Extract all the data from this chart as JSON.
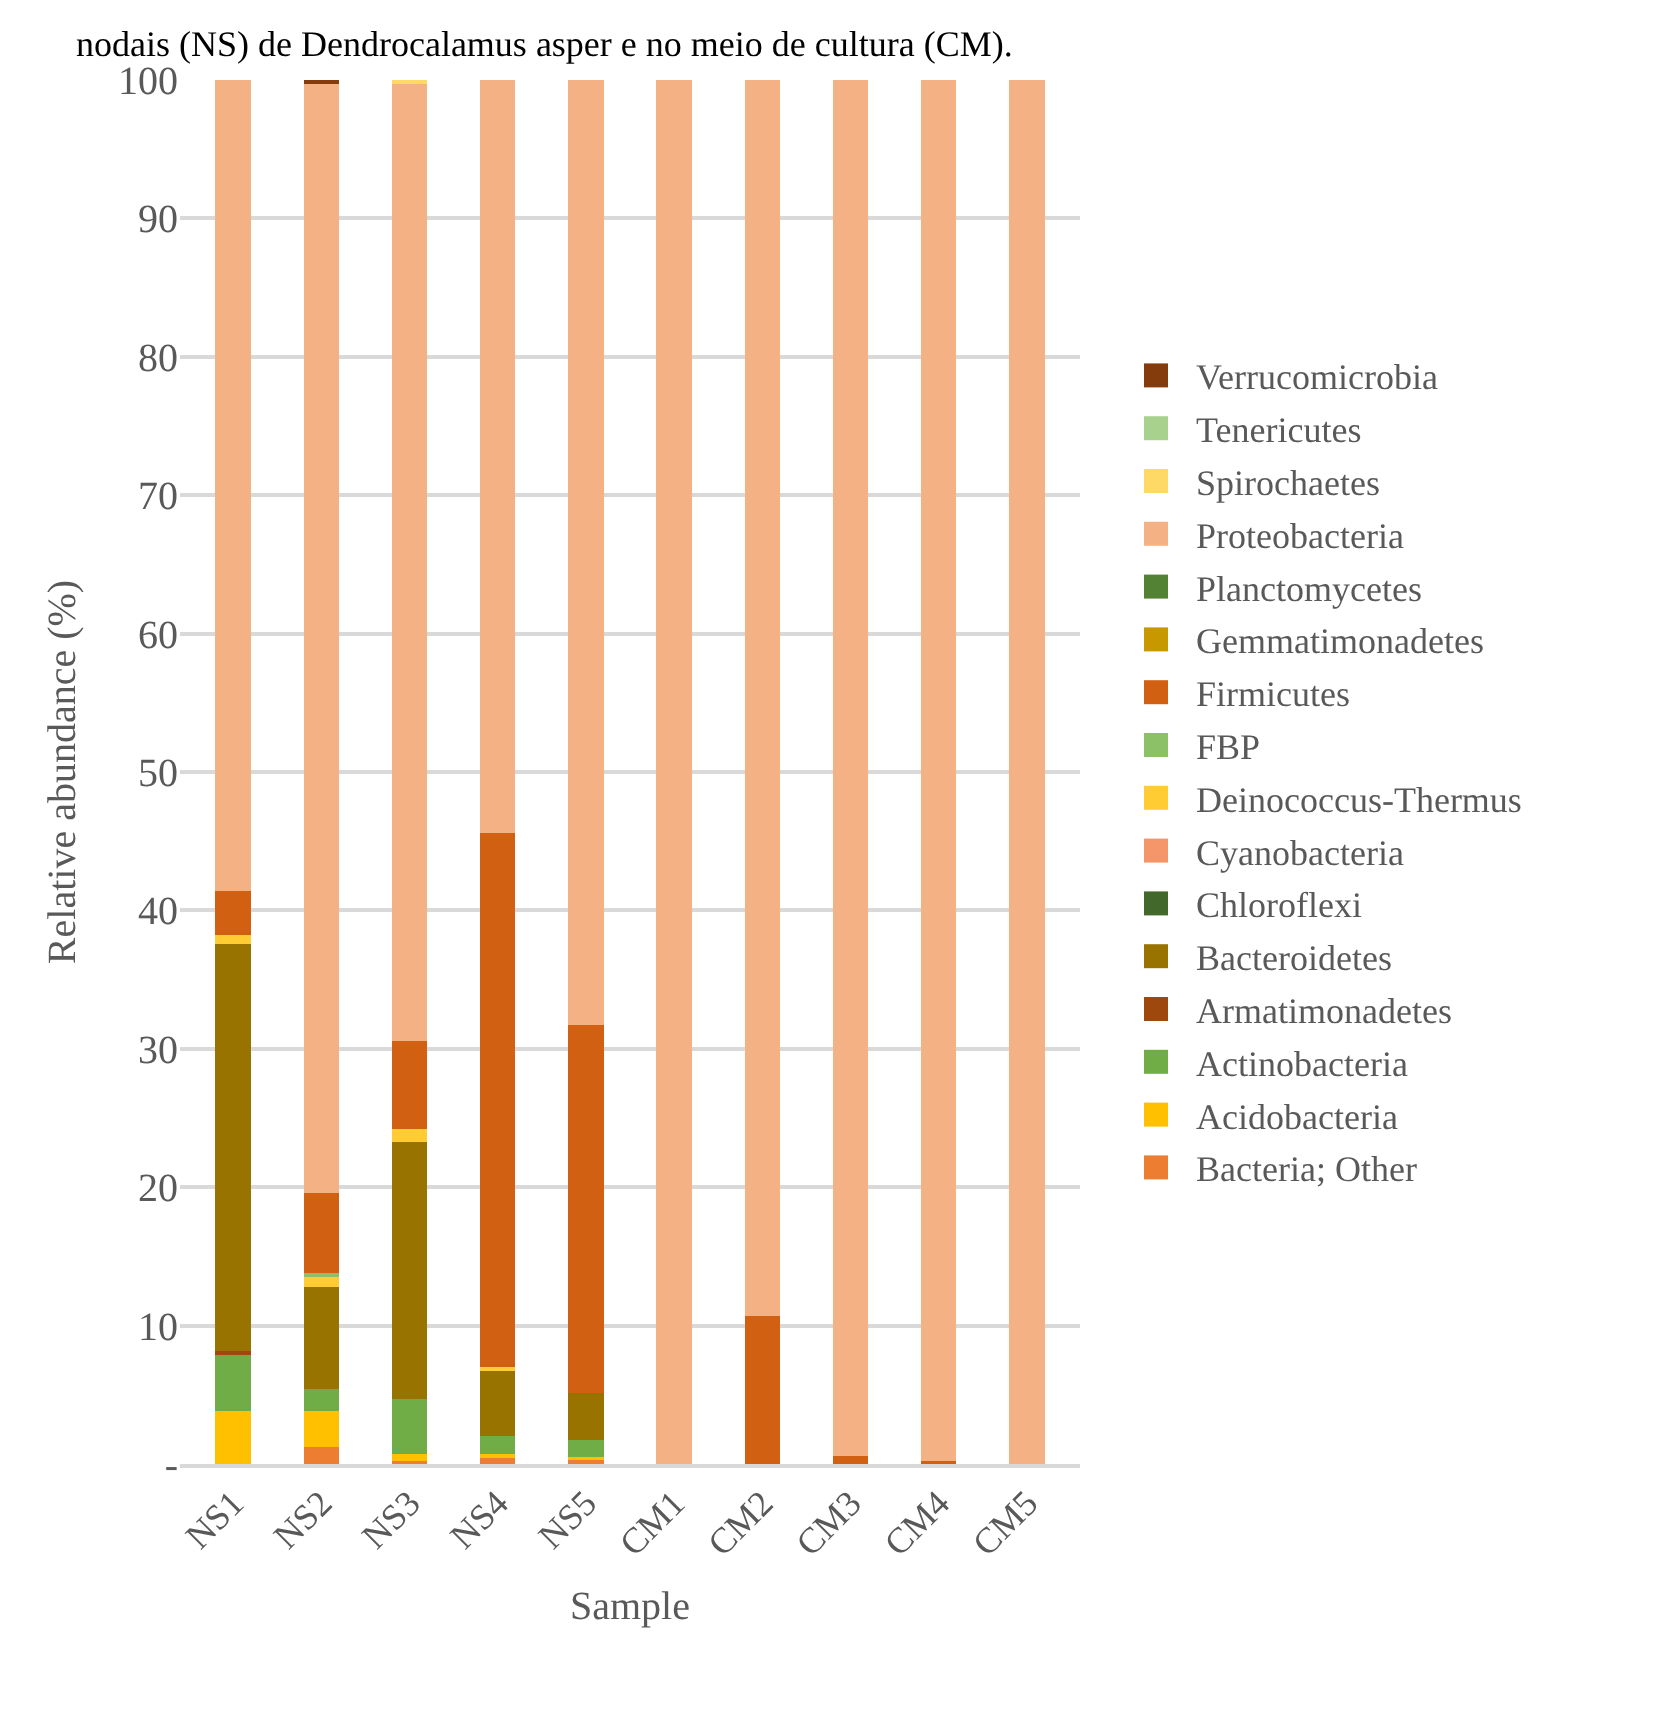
{
  "chart_data": {
    "type": "bar",
    "stacked": true,
    "annotations": [
      "nodais (NS) de Dendrocalamus asper e no meio de cultura (CM)."
    ],
    "xlabel": "Sample",
    "ylabel": "Relative abundance (%)",
    "categories": [
      "NS1",
      "NS2",
      "NS3",
      "NS4",
      "NS5",
      "CM1",
      "CM2",
      "CM3",
      "CM4",
      "CM5"
    ],
    "ylim": [
      0,
      100
    ],
    "yticks": [
      {
        "value": 0,
        "label": "-"
      },
      10,
      20,
      30,
      40,
      50,
      60,
      70,
      80,
      90,
      100
    ],
    "grid": "y",
    "legend": "right",
    "series": [
      {
        "name": "Bacteria; Other",
        "color": "#ed7d31",
        "values": [
          0,
          1.2,
          0.2,
          0.4,
          0.3,
          0,
          0,
          0,
          0,
          0
        ]
      },
      {
        "name": "Acidobacteria",
        "color": "#ffc000",
        "values": [
          3.8,
          2.6,
          0.5,
          0.3,
          0.2,
          0,
          0,
          0,
          0,
          0
        ]
      },
      {
        "name": "Actinobacteria",
        "color": "#70ad47",
        "values": [
          4.1,
          1.6,
          4.0,
          1.3,
          1.2,
          0,
          0,
          0,
          0,
          0
        ]
      },
      {
        "name": "Armatimonadetes",
        "color": "#9e480e",
        "values": [
          0.3,
          0,
          0,
          0,
          0,
          0,
          0,
          0,
          0,
          0
        ]
      },
      {
        "name": "Bacteroidetes",
        "color": "#997300",
        "values": [
          29.4,
          7.4,
          18.6,
          4.7,
          3.4,
          0,
          0,
          0,
          0,
          0
        ]
      },
      {
        "name": "Chloroflexi",
        "color": "#43682b",
        "values": [
          0,
          0,
          0,
          0,
          0,
          0,
          0,
          0,
          0,
          0
        ]
      },
      {
        "name": "Cyanobacteria",
        "color": "#f4956a",
        "values": [
          0,
          0,
          0,
          0,
          0,
          0,
          0,
          0,
          0,
          0
        ]
      },
      {
        "name": "Deinococcus-Thermus",
        "color": "#ffcd33",
        "values": [
          0.6,
          0.7,
          0.9,
          0.3,
          0,
          0,
          0,
          0,
          0,
          0
        ]
      },
      {
        "name": "FBP",
        "color": "#8cc168",
        "values": [
          0,
          0.3,
          0,
          0,
          0,
          0,
          0,
          0,
          0,
          0
        ]
      },
      {
        "name": "Firmicutes",
        "color": "#d26012",
        "values": [
          3.2,
          5.8,
          6.4,
          38.6,
          26.6,
          0,
          10.7,
          0.6,
          0.2,
          0
        ]
      },
      {
        "name": "Gemmatimonadetes",
        "color": "#c89800",
        "values": [
          0,
          0,
          0,
          0,
          0,
          0,
          0,
          0,
          0,
          0
        ]
      },
      {
        "name": "Planctomycetes",
        "color": "#548235",
        "values": [
          0,
          0,
          0,
          0,
          0,
          0,
          0,
          0,
          0,
          0
        ]
      },
      {
        "name": "Proteobacteria",
        "color": "#f4b183",
        "values": [
          58.6,
          80.2,
          69.2,
          54.4,
          68.3,
          100,
          89.3,
          99.4,
          99.8,
          100
        ]
      },
      {
        "name": "Spirochaetes",
        "color": "#ffd966",
        "values": [
          0,
          0,
          0.2,
          0,
          0,
          0,
          0,
          0,
          0,
          0
        ]
      },
      {
        "name": "Tenericutes",
        "color": "#a9d18e",
        "values": [
          0,
          0,
          0,
          0,
          0,
          0,
          0,
          0,
          0,
          0
        ]
      },
      {
        "name": "Verrucomicrobia",
        "color": "#843c0c",
        "values": [
          0,
          0.2,
          0,
          0,
          0,
          0,
          0,
          0,
          0,
          0
        ]
      }
    ]
  }
}
